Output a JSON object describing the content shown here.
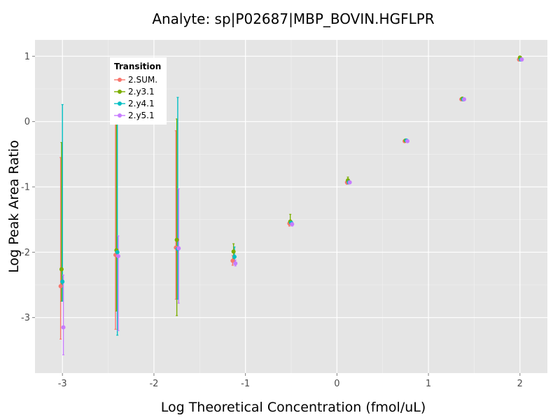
{
  "chart_data": {
    "type": "scatter",
    "title": "Analyte: sp|P02687|MBP_BOVIN.HGFLPR",
    "xlabel": "Log Theoretical Concentration (fmol/uL)",
    "ylabel": "Log Peak Area Ratio",
    "xlim": [
      -3.3,
      2.3
    ],
    "ylim": [
      -3.85,
      1.25
    ],
    "xticks": [
      -3,
      -2,
      -1,
      0,
      1,
      2
    ],
    "yticks": [
      -3,
      -2,
      -1,
      0,
      1
    ],
    "grid": true,
    "legend": {
      "title": "Transition",
      "position": "top-left"
    },
    "series": [
      {
        "name": "2.SUM.",
        "color": "#F8766D",
        "points": [
          {
            "x": -3.02,
            "y": -2.52,
            "ylo": -3.33,
            "yhi": -0.55
          },
          {
            "x": -2.42,
            "y": -2.04,
            "ylo": -3.18,
            "yhi": 0.1
          },
          {
            "x": -1.76,
            "y": -1.93,
            "ylo": -2.72,
            "yhi": -0.14
          },
          {
            "x": -1.14,
            "y": -2.13,
            "ylo": -2.2,
            "yhi": -2.05
          },
          {
            "x": -0.52,
            "y": -1.56,
            "ylo": -1.6,
            "yhi": -1.52
          },
          {
            "x": 0.11,
            "y": -0.93,
            "ylo": -0.96,
            "yhi": -0.9
          },
          {
            "x": 0.74,
            "y": -0.3,
            "ylo": -0.32,
            "yhi": -0.28
          },
          {
            "x": 1.36,
            "y": 0.34,
            "ylo": 0.32,
            "yhi": 0.36
          },
          {
            "x": 1.99,
            "y": 0.95,
            "ylo": 0.94,
            "yhi": 0.97
          }
        ]
      },
      {
        "name": "2.y3.1",
        "color": "#7CAE00",
        "points": [
          {
            "x": -3.01,
            "y": -2.26,
            "ylo": -2.75,
            "yhi": -0.32
          },
          {
            "x": -2.41,
            "y": -1.97,
            "ylo": -2.9,
            "yhi": 0.1
          },
          {
            "x": -1.75,
            "y": -1.81,
            "ylo": -2.97,
            "yhi": 0.04
          },
          {
            "x": -1.13,
            "y": -1.99,
            "ylo": -2.1,
            "yhi": -1.87
          },
          {
            "x": -0.51,
            "y": -1.53,
            "ylo": -1.58,
            "yhi": -1.42
          },
          {
            "x": 0.12,
            "y": -0.9,
            "ylo": -0.94,
            "yhi": -0.85
          },
          {
            "x": 0.75,
            "y": -0.29,
            "ylo": -0.31,
            "yhi": -0.27
          },
          {
            "x": 1.37,
            "y": 0.35,
            "ylo": 0.33,
            "yhi": 0.36
          },
          {
            "x": 2.0,
            "y": 0.98,
            "ylo": 0.96,
            "yhi": 0.99
          }
        ]
      },
      {
        "name": "2.y4.1",
        "color": "#00BFC4",
        "points": [
          {
            "x": -3.0,
            "y": -2.45,
            "ylo": -2.75,
            "yhi": 0.26
          },
          {
            "x": -2.4,
            "y": -2.0,
            "ylo": -3.27,
            "yhi": 0.1
          },
          {
            "x": -1.74,
            "y": -1.95,
            "ylo": -2.72,
            "yhi": 0.37
          },
          {
            "x": -1.12,
            "y": -2.07,
            "ylo": -2.14,
            "yhi": -1.92
          },
          {
            "x": -0.5,
            "y": -1.55,
            "ylo": -1.58,
            "yhi": -1.52
          },
          {
            "x": 0.13,
            "y": -0.93,
            "ylo": -0.95,
            "yhi": -0.91
          },
          {
            "x": 0.76,
            "y": -0.29,
            "ylo": -0.31,
            "yhi": -0.27
          },
          {
            "x": 1.38,
            "y": 0.34,
            "ylo": 0.33,
            "yhi": 0.36
          },
          {
            "x": 2.01,
            "y": 0.95,
            "ylo": 0.94,
            "yhi": 0.97
          }
        ]
      },
      {
        "name": "2.y5.1",
        "color": "#C77CFF",
        "points": [
          {
            "x": -2.99,
            "y": -3.15,
            "ylo": -3.57,
            "yhi": -2.35
          },
          {
            "x": -2.39,
            "y": -2.06,
            "ylo": -3.2,
            "yhi": -1.75
          },
          {
            "x": -1.73,
            "y": -1.94,
            "ylo": -2.78,
            "yhi": -1.03
          },
          {
            "x": -1.11,
            "y": -2.17,
            "ylo": -2.21,
            "yhi": -2.12
          },
          {
            "x": -0.49,
            "y": -1.57,
            "ylo": -1.6,
            "yhi": -1.54
          },
          {
            "x": 0.14,
            "y": -0.93,
            "ylo": -0.95,
            "yhi": -0.91
          },
          {
            "x": 0.77,
            "y": -0.3,
            "ylo": -0.32,
            "yhi": -0.28
          },
          {
            "x": 1.39,
            "y": 0.34,
            "ylo": 0.33,
            "yhi": 0.35
          },
          {
            "x": 2.02,
            "y": 0.95,
            "ylo": 0.94,
            "yhi": 0.96
          }
        ]
      }
    ]
  }
}
